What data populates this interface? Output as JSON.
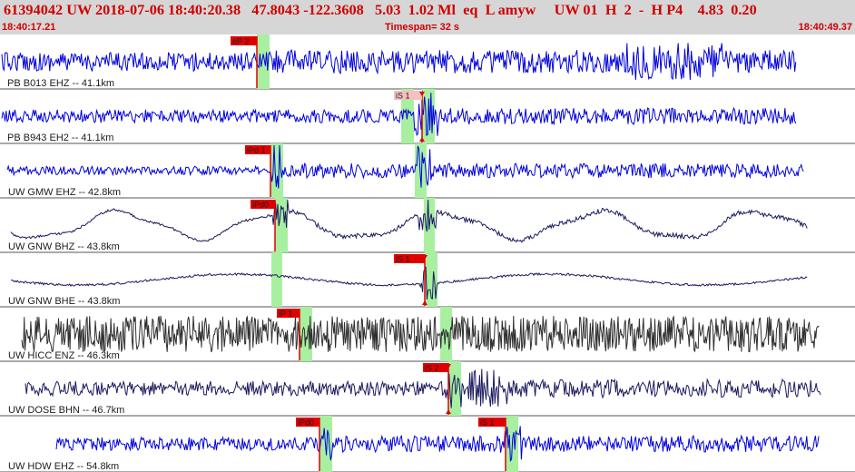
{
  "header": {
    "title": "61394042 UW 2018-07-06 18:40:20.38   47.8043 -122.3608   5.03  1.02 Ml  eq  L amyw     UW 01  H  2  -  H P4    4.83  0.20",
    "start_time": "18:40:17.21",
    "timespan": "Timespan=  32 s",
    "end_time": "18:40:49.37"
  },
  "colors": {
    "header_bg": "#d6d6d6",
    "header_text": "#d00000",
    "trace_blue": "#0000dd",
    "trace_dark": "#303030",
    "trace_navy": "#1a1a60",
    "pick_band": "#a8f0a0",
    "pick_flag": "#e00000",
    "pick_flag_light": "#f4c0c0"
  },
  "traces": [
    {
      "label": "PB B013 EHZ -- 41.1km",
      "color": "blue",
      "picks": [
        {
          "label": "eP 2",
          "style": "solid"
        }
      ]
    },
    {
      "label": "PB B943 EH2 -- 41.1km",
      "color": "blue",
      "picks": [
        {
          "label": "iS 1",
          "style": "light"
        }
      ]
    },
    {
      "label": "UW GMW EHZ -- 42.8km",
      "color": "blue",
      "picks": [
        {
          "label": "iPd 1",
          "style": "solid"
        }
      ]
    },
    {
      "label": "UW GNW BHZ -- 43.8km",
      "color": "navy",
      "picks": [
        {
          "label": "iPd0",
          "style": "solid"
        }
      ]
    },
    {
      "label": "UW GNW BHE -- 43.8km",
      "color": "navy",
      "picks": [
        {
          "label": "iS 1",
          "style": "solid"
        }
      ]
    },
    {
      "label": "UW HICC ENZ -- 46.3km",
      "color": "dark",
      "picks": [
        {
          "label": "iP 1",
          "style": "solid"
        }
      ]
    },
    {
      "label": "UW DOSE BHN -- 46.7km",
      "color": "navy",
      "picks": [
        {
          "label": "iS 2",
          "style": "solid"
        }
      ]
    },
    {
      "label": "UW HDW EHZ -- 54.8km",
      "color": "blue",
      "picks": [
        {
          "label": "iPd0",
          "style": "solid"
        },
        {
          "label": "iS 1",
          "style": "solid"
        }
      ]
    }
  ]
}
